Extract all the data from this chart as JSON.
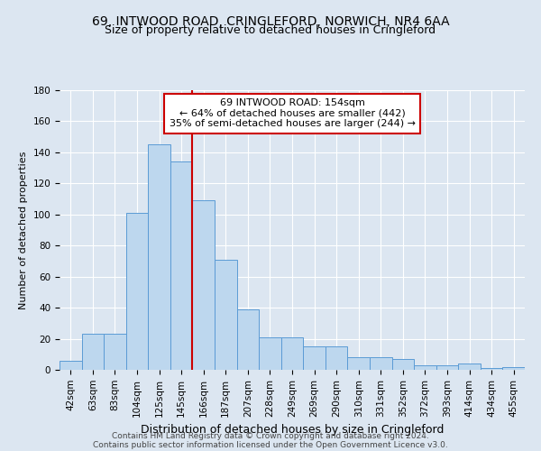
{
  "title": "69, INTWOOD ROAD, CRINGLEFORD, NORWICH, NR4 6AA",
  "subtitle": "Size of property relative to detached houses in Cringleford",
  "xlabel": "Distribution of detached houses by size in Cringleford",
  "ylabel": "Number of detached properties",
  "categories": [
    "42sqm",
    "63sqm",
    "83sqm",
    "104sqm",
    "125sqm",
    "145sqm",
    "166sqm",
    "187sqm",
    "207sqm",
    "228sqm",
    "249sqm",
    "269sqm",
    "290sqm",
    "310sqm",
    "331sqm",
    "352sqm",
    "372sqm",
    "393sqm",
    "414sqm",
    "434sqm",
    "455sqm"
  ],
  "values": [
    6,
    23,
    23,
    101,
    145,
    134,
    109,
    71,
    39,
    21,
    21,
    15,
    15,
    8,
    8,
    7,
    3,
    3,
    4,
    1,
    2
  ],
  "bar_color": "#bdd7ee",
  "bar_edge_color": "#5b9bd5",
  "annotation_title": "69 INTWOOD ROAD: 154sqm",
  "annotation_line1": "← 64% of detached houses are smaller (442)",
  "annotation_line2": "35% of semi-detached houses are larger (244) →",
  "vline_color": "#cc0000",
  "annotation_box_color": "#cc0000",
  "vline_pos": 5.5,
  "ylim": [
    0,
    180
  ],
  "yticks": [
    0,
    20,
    40,
    60,
    80,
    100,
    120,
    140,
    160,
    180
  ],
  "footnote1": "Contains HM Land Registry data © Crown copyright and database right 2024.",
  "footnote2": "Contains public sector information licensed under the Open Government Licence v3.0.",
  "bg_color": "#dce6f1",
  "title_fontsize": 10,
  "subtitle_fontsize": 9,
  "xlabel_fontsize": 9,
  "ylabel_fontsize": 8,
  "tick_fontsize": 7.5,
  "annotation_fontsize": 8,
  "footnote_fontsize": 6.5
}
